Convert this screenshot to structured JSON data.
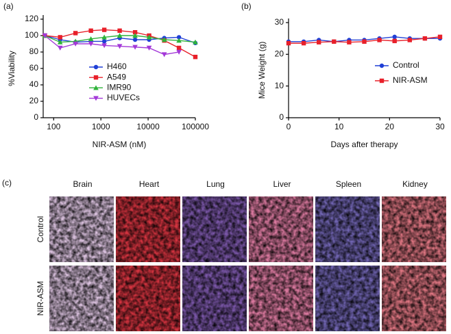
{
  "chart_data": [
    {
      "type": "line",
      "panel": "(a)",
      "ylabel": "%Viability",
      "xlabel": "NIR-ASM (nM)",
      "xscale": "log",
      "xlim": [
        60,
        100000
      ],
      "xticks": [
        100,
        1000,
        10000,
        100000
      ],
      "ylim": [
        0,
        120
      ],
      "yticks": [
        0,
        20,
        40,
        60,
        80,
        100,
        120
      ],
      "legend": "center",
      "x": [
        65,
        137,
        290,
        615,
        1180,
        2500,
        5300,
        10500,
        22000,
        45000,
        100000
      ],
      "series": [
        {
          "name": "H460",
          "color": "#1f3fd6",
          "marker": "circle",
          "values": [
            100,
            95,
            92,
            93,
            93,
            97,
            95,
            95,
            97,
            98,
            91
          ]
        },
        {
          "name": "A549",
          "color": "#e8202a",
          "marker": "square",
          "values": [
            100,
            98,
            103,
            106,
            107,
            106,
            104,
            100,
            94,
            85,
            74
          ]
        },
        {
          "name": "IMR90",
          "color": "#2fb33a",
          "marker": "triangle",
          "values": [
            100,
            92,
            93,
            96,
            98,
            100,
            100,
            98,
            95,
            94,
            92
          ]
        },
        {
          "name": "HUVECs",
          "color": "#a338d8",
          "marker": "triangle-down",
          "values": [
            100,
            85,
            90,
            90,
            88,
            87,
            86,
            85,
            77,
            80,
            null
          ]
        }
      ]
    },
    {
      "type": "line",
      "panel": "(b)",
      "ylabel": "Mice Weight (g)",
      "xlabel": "Days after therapy",
      "xscale": "linear",
      "xlim": [
        0,
        30
      ],
      "xticks": [
        0,
        10,
        20,
        30
      ],
      "ylim": [
        0,
        30
      ],
      "yticks": [
        0,
        10,
        20,
        30
      ],
      "legend": "right",
      "x": [
        0,
        3,
        6,
        9,
        12,
        15,
        18,
        21,
        24,
        27,
        30
      ],
      "series": [
        {
          "name": "Control",
          "color": "#1f3fd6",
          "marker": "circle",
          "values": [
            24,
            24,
            24.5,
            24,
            24.5,
            24.5,
            25,
            25.5,
            25,
            25,
            25
          ]
        },
        {
          "name": "NIR-ASM",
          "color": "#e8202a",
          "marker": "square",
          "values": [
            23.5,
            23.5,
            23.8,
            24,
            23.8,
            24,
            24.5,
            24.2,
            24.5,
            25,
            25.5
          ]
        }
      ]
    }
  ],
  "histology": {
    "panel": "(c)",
    "columns": [
      "Brain",
      "Heart",
      "Lung",
      "Liver",
      "Spleen",
      "Kidney"
    ],
    "rows": [
      "Control",
      "NIR-ASM"
    ]
  }
}
